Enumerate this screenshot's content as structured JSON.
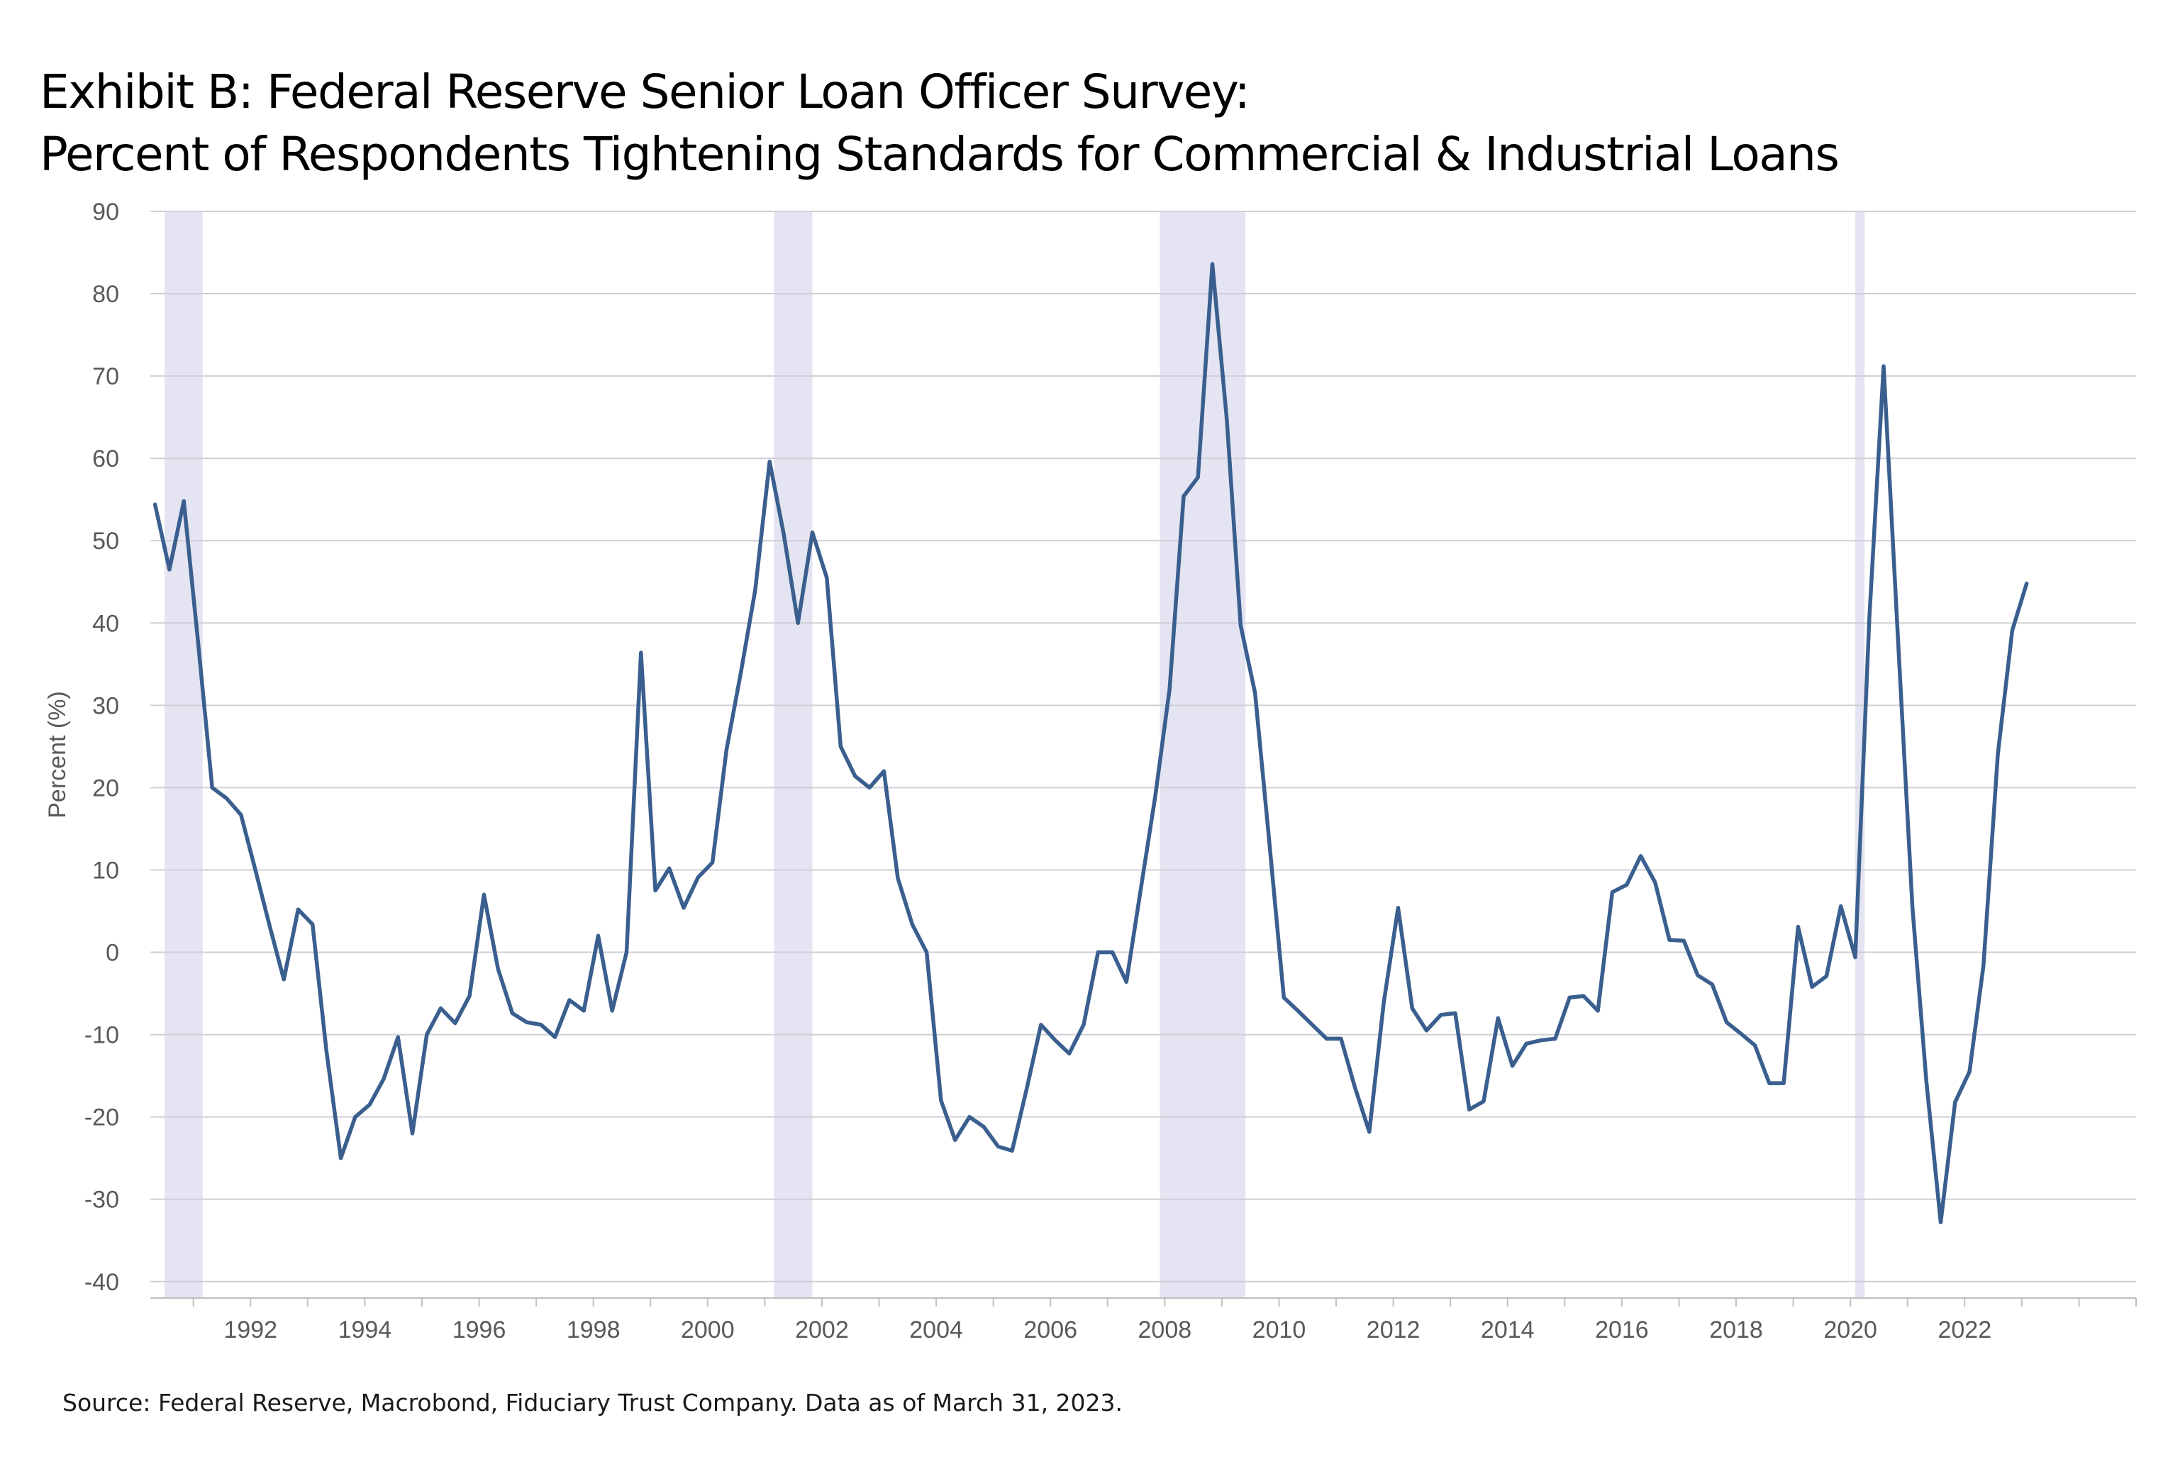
{
  "title_line1": "Exhibit B: Federal Reserve Senior Loan Officer Survey:",
  "title_line2": "Percent of Respondents Tightening Standards for Commercial & Industrial Loans",
  "source": "Source: Federal Reserve, Macrobond, Fiduciary Trust Company. Data as of March 31, 2023.",
  "chart_data": {
    "type": "line",
    "title": "Exhibit B: Federal Reserve Senior Loan Officer Survey: Percent of Respondents Tightening Standards for Commercial & Industrial Loans",
    "xlabel": "",
    "ylabel": "Percent (%)",
    "xlim": [
      "1990-04-01",
      "2025-01-01"
    ],
    "ylim": [
      -42,
      90
    ],
    "yticks": [
      90,
      80,
      70,
      60,
      50,
      40,
      30,
      20,
      10,
      0,
      -10,
      -20,
      -30,
      -40
    ],
    "xticks": [
      "1992",
      "1994",
      "1996",
      "1998",
      "2000",
      "2002",
      "2004",
      "2006",
      "2008",
      "2010",
      "2012",
      "2014",
      "2016",
      "2018",
      "2020",
      "2022"
    ],
    "grid": true,
    "line_color": "#3a5f8f",
    "recession_color": "#e4e4f2",
    "recessions": [
      [
        "1990-07-01",
        "1991-03-01"
      ],
      [
        "2001-03-01",
        "2001-11-01"
      ],
      [
        "2007-12-01",
        "2009-06-01"
      ],
      [
        "2020-02-01",
        "2020-04-01"
      ]
    ],
    "series": [
      {
        "x": [
          "1990-05-01",
          "1990-08-01",
          "1990-11-01",
          "1991-02-01",
          "1991-05-01",
          "1991-08-01",
          "1991-11-01",
          "1992-02-01",
          "1992-05-01",
          "1992-08-01",
          "1992-11-01",
          "1993-02-01",
          "1993-05-01",
          "1993-08-01",
          "1993-11-01",
          "1994-02-01",
          "1994-05-01",
          "1994-08-01",
          "1994-11-01",
          "1995-02-01",
          "1995-05-01",
          "1995-08-01",
          "1995-11-01",
          "1996-02-01",
          "1996-05-01",
          "1996-08-01",
          "1996-11-01",
          "1997-02-01",
          "1997-05-01",
          "1997-08-01",
          "1997-11-01",
          "1998-02-01",
          "1998-05-01",
          "1998-08-01",
          "1998-11-01",
          "1999-02-01",
          "1999-05-01",
          "1999-08-01",
          "1999-11-01",
          "2000-02-01",
          "2000-05-01",
          "2000-08-01",
          "2000-11-01",
          "2001-02-01",
          "2001-05-01",
          "2001-08-01",
          "2001-11-01",
          "2002-02-01",
          "2002-05-01",
          "2002-08-01",
          "2002-11-01",
          "2003-02-01",
          "2003-05-01",
          "2003-08-01",
          "2003-11-01",
          "2004-02-01",
          "2004-05-01",
          "2004-08-01",
          "2004-11-01",
          "2005-02-01",
          "2005-05-01",
          "2005-08-01",
          "2005-11-01",
          "2006-02-01",
          "2006-05-01",
          "2006-08-01",
          "2006-11-01",
          "2007-02-01",
          "2007-05-01",
          "2007-08-01",
          "2007-11-01",
          "2008-02-01",
          "2008-05-01",
          "2008-08-01",
          "2008-11-01",
          "2009-02-01",
          "2009-05-01",
          "2009-08-01",
          "2009-11-01",
          "2010-02-01",
          "2010-05-01",
          "2010-08-01",
          "2010-11-01",
          "2011-02-01",
          "2011-05-01",
          "2011-08-01",
          "2011-11-01",
          "2012-02-01",
          "2012-05-01",
          "2012-08-01",
          "2012-11-01",
          "2013-02-01",
          "2013-05-01",
          "2013-08-01",
          "2013-11-01",
          "2014-02-01",
          "2014-05-01",
          "2014-08-01",
          "2014-11-01",
          "2015-02-01",
          "2015-05-01",
          "2015-08-01",
          "2015-11-01",
          "2016-02-01",
          "2016-05-01",
          "2016-08-01",
          "2016-11-01",
          "2017-02-01",
          "2017-05-01",
          "2017-08-01",
          "2017-11-01",
          "2018-02-01",
          "2018-05-01",
          "2018-08-01",
          "2018-11-01",
          "2019-02-01",
          "2019-05-01",
          "2019-08-01",
          "2019-11-01",
          "2020-02-01",
          "2020-05-01",
          "2020-08-01",
          "2020-11-01",
          "2021-02-01",
          "2021-05-01",
          "2021-08-01",
          "2021-11-01",
          "2022-02-01",
          "2022-05-01",
          "2022-08-01",
          "2022-11-01",
          "2023-02-01"
        ],
        "y": [
          54.4,
          46.5,
          54.8,
          37.5,
          20,
          18.7,
          16.7,
          10,
          3.3,
          -3.3,
          5.2,
          3.4,
          -12,
          -25,
          -20,
          -18.5,
          -15.4,
          -10.3,
          -22,
          -10,
          -6.8,
          -8.6,
          -5.3,
          7,
          -2,
          -7.4,
          -8.5,
          -8.8,
          -10.3,
          -5.8,
          -7.1,
          2,
          -7.1,
          0,
          36.4,
          7.5,
          10.2,
          5.4,
          9.1,
          10.9,
          24.6,
          34,
          44,
          59.6,
          50.9,
          40,
          51,
          45.5,
          25,
          21.4,
          20,
          22,
          9,
          3.4,
          0,
          -18,
          -22.8,
          -20,
          -21.2,
          -23.6,
          -24.1,
          -16.7,
          -8.8,
          -10.7,
          -12.3,
          -8.8,
          0,
          0,
          -3.6,
          7.7,
          18.9,
          32,
          55.4,
          57.7,
          83.6,
          64.8,
          39.7,
          31.5,
          13.2,
          -5.5,
          -7.1,
          -8.8,
          -10.5,
          -10.5,
          -16.4,
          -21.8,
          -6.1,
          5.4,
          -6.8,
          -9.5,
          -7.6,
          -7.4,
          -19.1,
          -18.1,
          -8,
          -13.8,
          -11.1,
          -10.7,
          -10.5,
          -5.5,
          -5.3,
          -7.1,
          7.3,
          8.2,
          11.7,
          8.5,
          1.5,
          1.4,
          -2.8,
          -3.9,
          -8.5,
          -9.9,
          -11.3,
          -15.9,
          -15.9,
          3.1,
          -4.2,
          -2.9,
          5.6,
          -0.6,
          40.5,
          71.2,
          38,
          5.5,
          -15.6,
          -32.8,
          -18.2,
          -14.5,
          -1.6,
          24.1,
          39.1,
          44.8
        ]
      }
    ]
  }
}
